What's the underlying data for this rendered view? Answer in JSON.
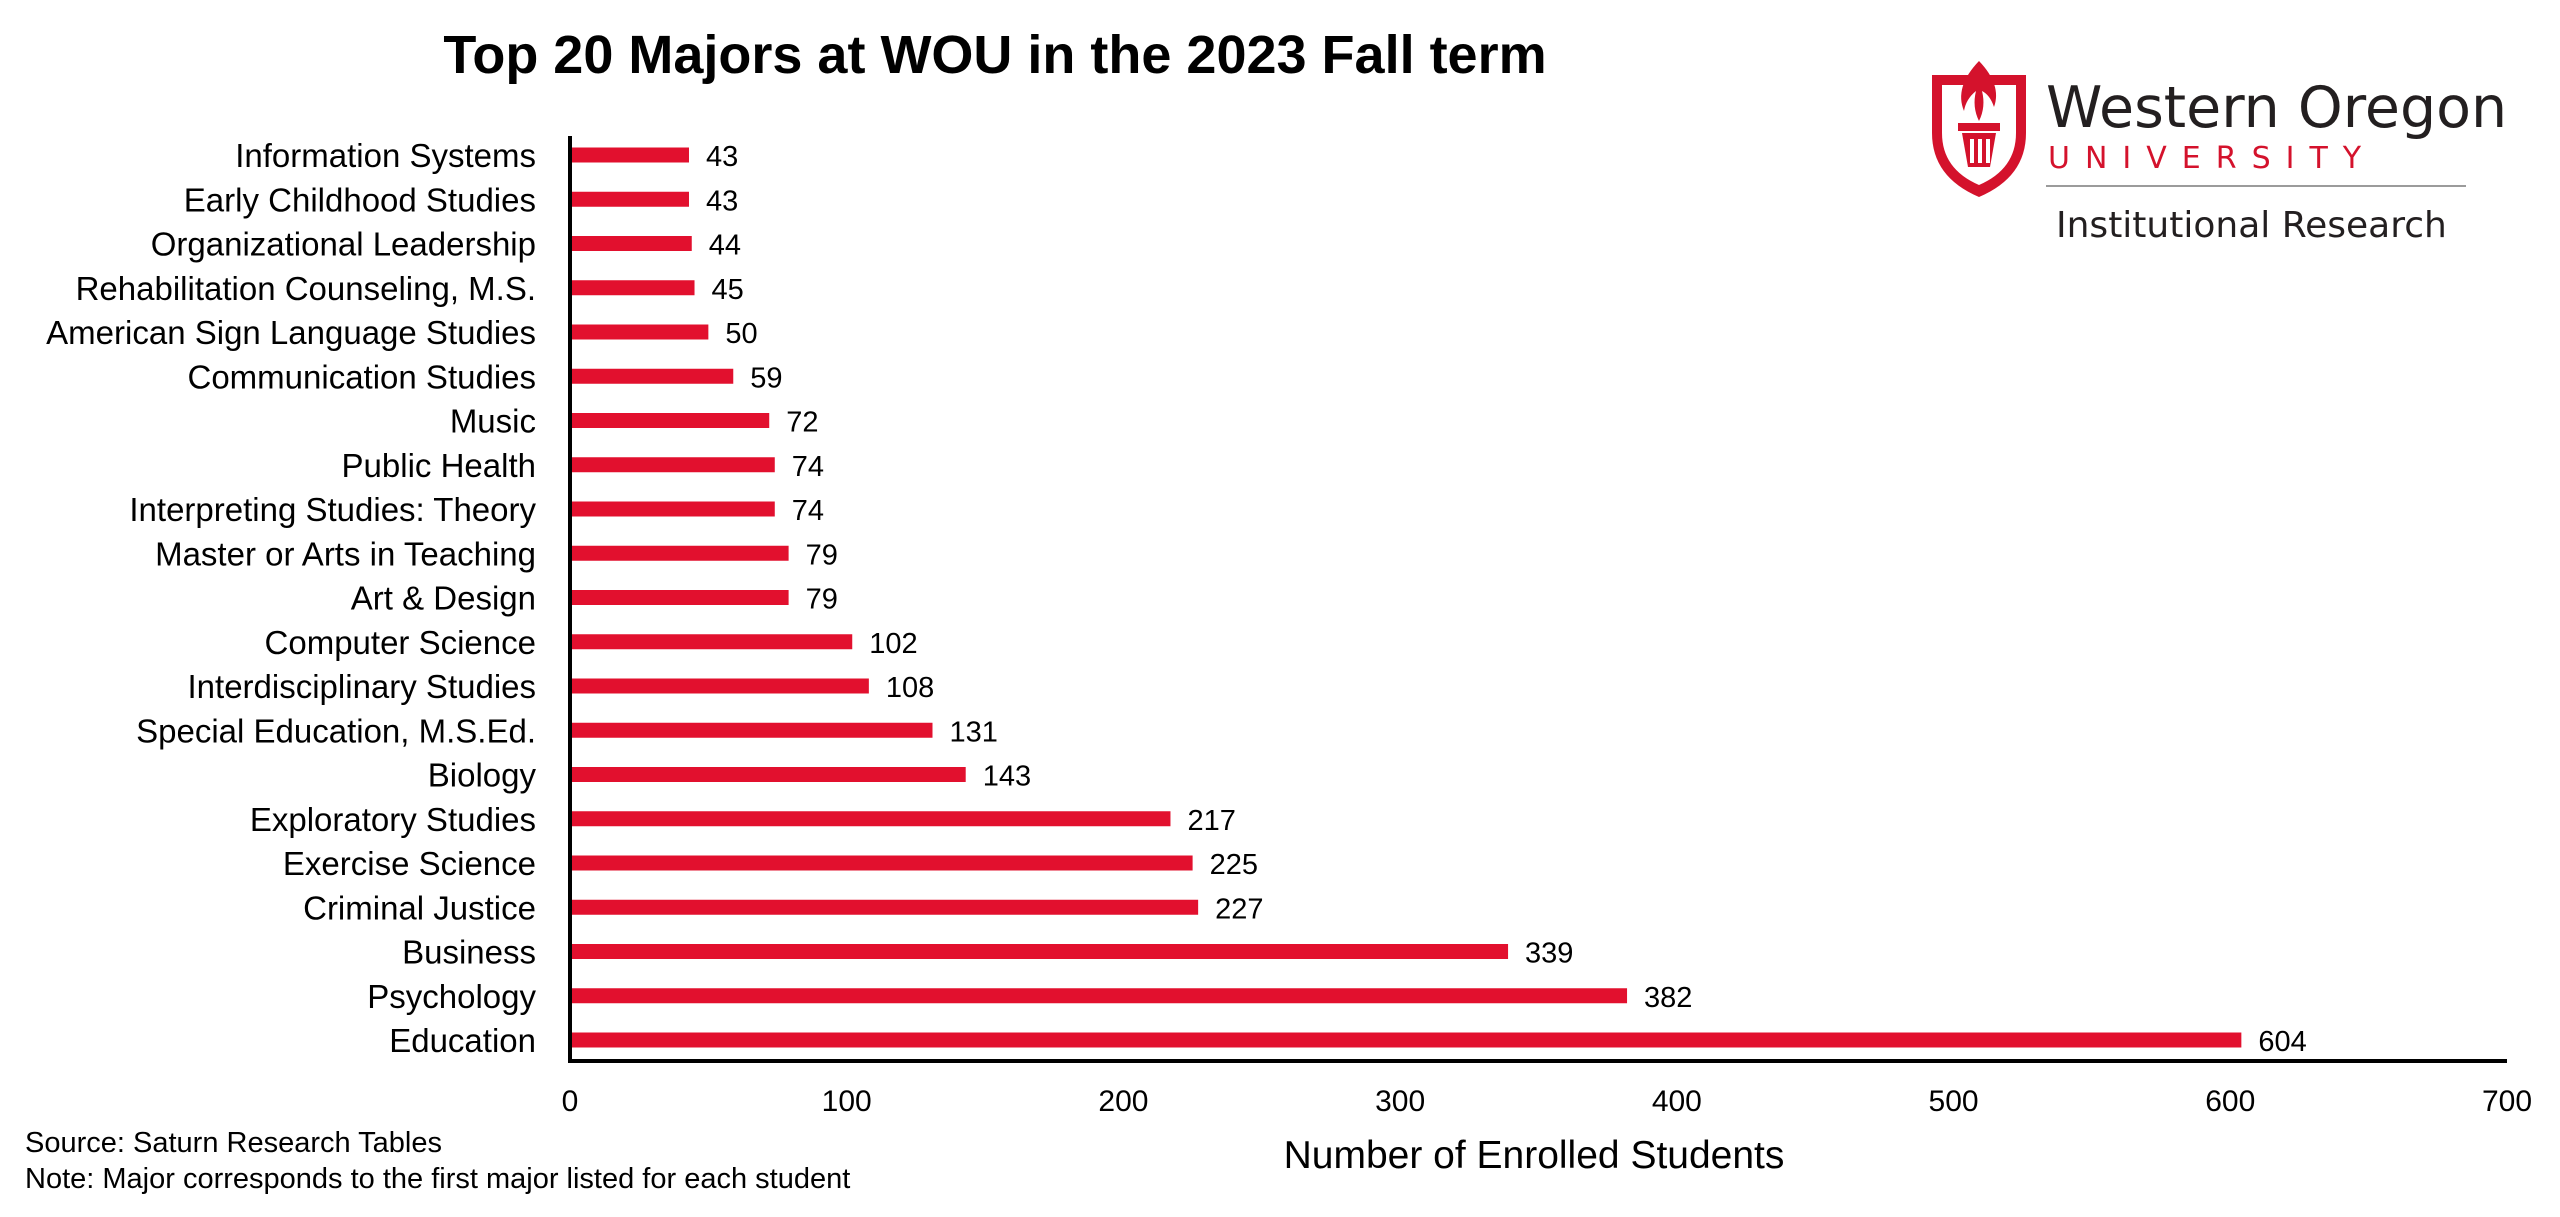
{
  "chart_data": {
    "type": "bar",
    "orientation": "horizontal",
    "title": "Top 20 Majors at WOU in the 2023 Fall term",
    "xlabel": "Number of Enrolled Students",
    "ylabel": "",
    "xlim": [
      0,
      700
    ],
    "xticks": [
      0,
      100,
      200,
      300,
      400,
      500,
      600,
      700
    ],
    "grid": false,
    "legend": "none",
    "bar_color": "#e2102e",
    "categories": [
      "Information Systems",
      "Early Childhood Studies",
      "Organizational Leadership",
      "Rehabilitation Counseling, M.S.",
      "American Sign Language Studies",
      "Communication Studies",
      "Music",
      "Public Health",
      "Interpreting Studies: Theory",
      "Master or Arts in Teaching",
      "Art & Design",
      "Computer Science",
      "Interdisciplinary Studies",
      "Special Education, M.S.Ed.",
      "Biology",
      "Exploratory Studies",
      "Exercise Science",
      "Criminal Justice",
      "Business",
      "Psychology",
      "Education"
    ],
    "values": [
      43,
      43,
      44,
      45,
      50,
      59,
      72,
      74,
      74,
      79,
      79,
      102,
      108,
      131,
      143,
      217,
      225,
      227,
      339,
      382,
      604
    ]
  },
  "logo": {
    "name": "Western Oregon",
    "university": "UNIVERSITY",
    "department": "Institutional Research",
    "accent_color": "#d4122c",
    "icon": "torch-shield-icon"
  },
  "footnotes": {
    "source": "Source: Saturn Research Tables",
    "note": "Note: Major corresponds to the first major listed for each student"
  }
}
